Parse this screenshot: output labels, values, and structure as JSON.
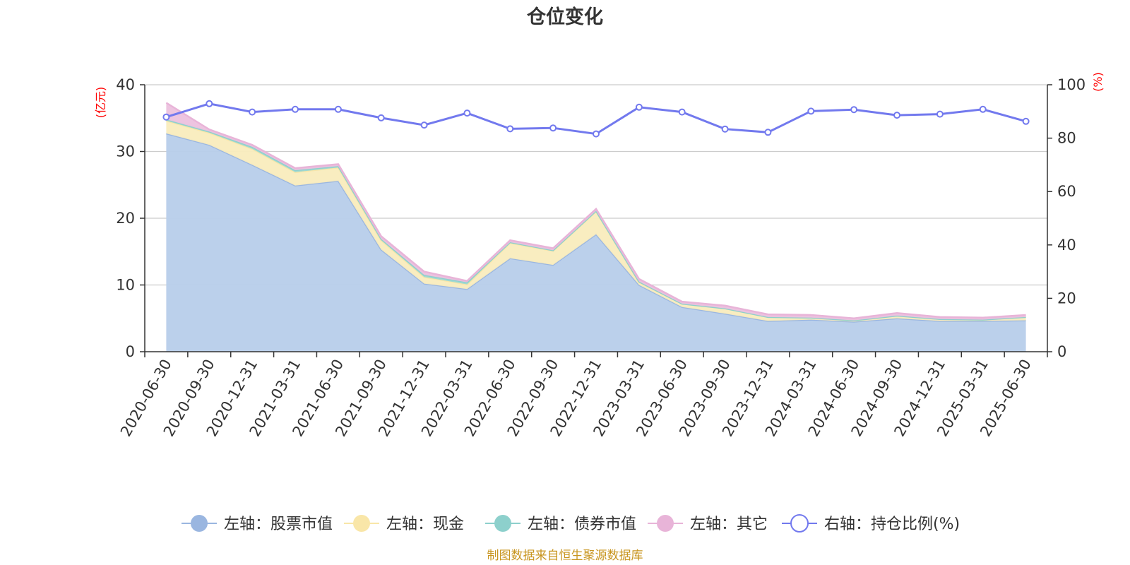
{
  "chart_data": {
    "type": "area",
    "title": "仓位变化",
    "x": [
      "2020-06-30",
      "2020-09-30",
      "2020-12-31",
      "2021-03-31",
      "2021-06-30",
      "2021-09-30",
      "2021-12-31",
      "2022-03-31",
      "2022-06-30",
      "2022-09-30",
      "2022-12-31",
      "2023-03-31",
      "2023-06-30",
      "2023-09-30",
      "2023-12-31",
      "2024-03-31",
      "2024-06-30",
      "2024-09-30",
      "2024-12-31",
      "2025-03-31",
      "2025-06-30"
    ],
    "left_axis": {
      "unit": "(亿元)",
      "ylim": [
        0,
        40
      ],
      "ticks": [
        0,
        10,
        20,
        30,
        40
      ]
    },
    "right_axis": {
      "unit": "(%)",
      "ylim": [
        0,
        100
      ],
      "ticks": [
        0,
        20,
        40,
        60,
        80,
        100
      ]
    },
    "stacked": true,
    "series": [
      {
        "name": "左轴：股票市值",
        "axis": "left",
        "type": "area",
        "color": "#9ab6e0",
        "fill": "#b7cdea",
        "values": [
          32.7,
          31.0,
          28.0,
          24.9,
          25.6,
          15.3,
          10.2,
          9.4,
          14.0,
          13.0,
          17.6,
          10.0,
          6.7,
          5.7,
          4.6,
          4.8,
          4.5,
          5.0,
          4.6,
          4.6,
          4.7
        ]
      },
      {
        "name": "左轴：现金",
        "axis": "left",
        "type": "area",
        "color": "#f9e6a8",
        "fill": "#f9ecbd",
        "values": [
          1.9,
          1.8,
          2.4,
          2.0,
          2.0,
          1.4,
          1.0,
          0.7,
          2.3,
          2.1,
          3.4,
          0.4,
          0.5,
          0.8,
          0.6,
          0.3,
          0.2,
          0.4,
          0.3,
          0.2,
          0.5
        ]
      },
      {
        "name": "左轴：债券市值",
        "axis": "left",
        "type": "area",
        "color": "#8dd0cc",
        "fill": "#9cd8d3",
        "values": [
          0.2,
          0.2,
          0.3,
          0.3,
          0.2,
          0.2,
          0.3,
          0.3,
          0.1,
          0.1,
          0.1,
          0.1,
          0.0,
          0.0,
          0.0,
          0.0,
          0.0,
          0.0,
          0.0,
          0.0,
          0.0
        ]
      },
      {
        "name": "左轴：其它",
        "axis": "left",
        "type": "area",
        "color": "#e8b4d8",
        "fill": "#ecc1de",
        "values": [
          2.5,
          0.3,
          0.3,
          0.3,
          0.3,
          0.4,
          0.5,
          0.2,
          0.3,
          0.3,
          0.3,
          0.4,
          0.3,
          0.4,
          0.4,
          0.4,
          0.3,
          0.4,
          0.3,
          0.3,
          0.3
        ]
      },
      {
        "name": "右轴：持仓比例(%)",
        "axis": "right",
        "type": "line",
        "color": "#7279ee",
        "values": [
          87.9,
          92.9,
          89.8,
          90.8,
          90.8,
          87.6,
          84.9,
          89.4,
          83.5,
          83.8,
          81.6,
          91.6,
          89.8,
          83.4,
          82.2,
          90.1,
          90.7,
          88.6,
          89.0,
          90.8,
          86.3
        ]
      }
    ],
    "legend_position": "bottom-center",
    "grid": true
  },
  "footer": {
    "source_text": "制图数据来自恒生聚源数据库"
  }
}
